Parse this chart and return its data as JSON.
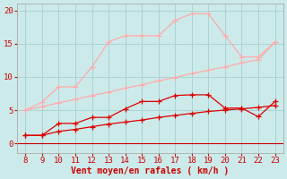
{
  "x": [
    8,
    9,
    10,
    11,
    12,
    13,
    14,
    15,
    16,
    17,
    18,
    19,
    20,
    21,
    22,
    23
  ],
  "line_rafales_y": [
    5.0,
    6.2,
    8.5,
    8.5,
    11.5,
    15.3,
    16.2,
    16.2,
    16.2,
    18.5,
    19.5,
    19.5,
    16.2,
    13.0,
    13.0,
    15.2
  ],
  "line_diag_y": [
    5.0,
    5.5,
    6.1,
    6.6,
    7.2,
    7.7,
    8.3,
    8.8,
    9.4,
    9.9,
    10.5,
    11.0,
    11.5,
    12.1,
    12.6,
    15.2
  ],
  "line_med_y": [
    1.2,
    1.2,
    3.0,
    3.0,
    3.9,
    3.9,
    5.2,
    6.3,
    6.3,
    7.2,
    7.3,
    7.3,
    5.3,
    5.3,
    4.0,
    6.3
  ],
  "line_low_y": [
    1.2,
    1.2,
    1.8,
    2.1,
    2.5,
    2.9,
    3.2,
    3.5,
    3.9,
    4.2,
    4.5,
    4.8,
    5.0,
    5.2,
    5.4,
    5.7
  ],
  "line_rafales_color": "#ffaaaa",
  "line_diag_color": "#ffaaaa",
  "line_med_color": "#dd0000",
  "line_low_color": "#dd0000",
  "background_color": "#cceaea",
  "grid_color": "#aad4d4",
  "axis_color": "#cc0000",
  "xlabel": "Vent moyen/en rafales ( km/h )",
  "ylim": [
    -1.5,
    21
  ],
  "yticks": [
    0,
    5,
    10,
    15,
    20
  ],
  "xticks": [
    8,
    9,
    10,
    11,
    12,
    13,
    14,
    15,
    16,
    17,
    18,
    19,
    20,
    21,
    22,
    23
  ],
  "marker": "+",
  "marker_size": 4,
  "linewidth": 0.9
}
